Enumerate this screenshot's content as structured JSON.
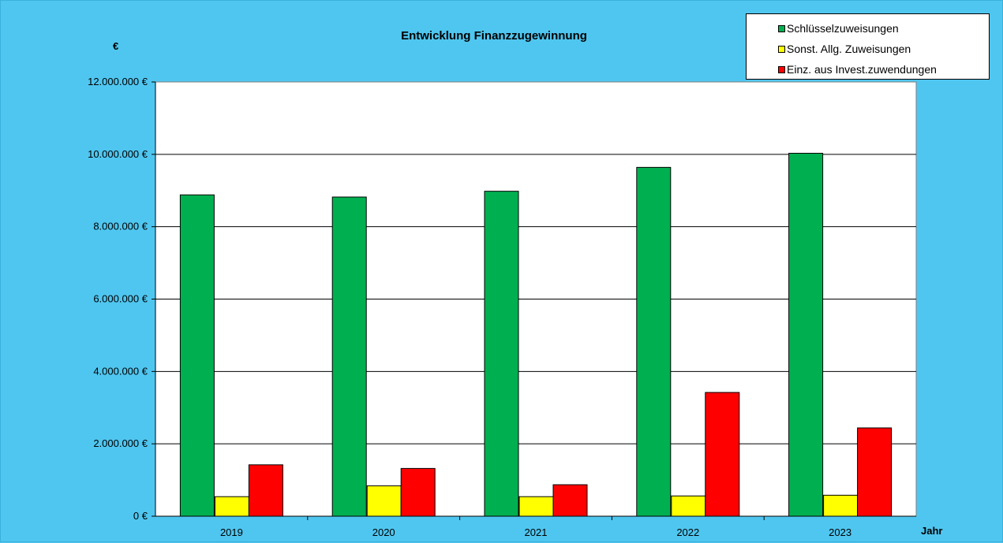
{
  "colors": {
    "background": "#4fc6f0",
    "plot_area": "#ffffff",
    "series": [
      "#00b050",
      "#ffff00",
      "#ff0000"
    ]
  },
  "chart_data": {
    "type": "bar",
    "title": "Entwicklung Finanzzugewinnung",
    "ylabel": "€",
    "xlabel": "Jahr",
    "categories": [
      "2019",
      "2020",
      "2021",
      "2022",
      "2023"
    ],
    "series": [
      {
        "name": "Schlüsselzuweisungen",
        "values": [
          8880000,
          8820000,
          8980000,
          9640000,
          10030000
        ]
      },
      {
        "name": "Sonst. Allg. Zuweisungen",
        "values": [
          540000,
          840000,
          540000,
          560000,
          580000
        ]
      },
      {
        "name": "Einz. aus Invest.zuwendungen",
        "values": [
          1420000,
          1320000,
          870000,
          3420000,
          2440000
        ]
      }
    ],
    "ylim": [
      0,
      12000000
    ],
    "y_ticks": [
      0,
      2000000,
      4000000,
      6000000,
      8000000,
      10000000,
      12000000
    ],
    "y_tick_labels": [
      "0 €",
      "2.000.000 €",
      "4.000.000 €",
      "6.000.000 €",
      "8.000.000 €",
      "10.000.000 €",
      "12.000.000 €"
    ],
    "grid": true,
    "legend_position": "top-right"
  }
}
